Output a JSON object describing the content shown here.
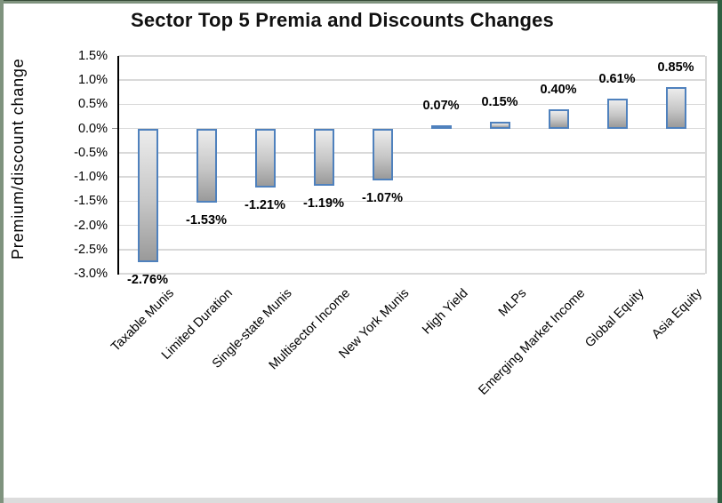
{
  "chart_data": {
    "type": "bar",
    "title": "Sector Top 5 Premia and Discounts Changes",
    "xlabel": "",
    "ylabel": "Premium/discount change",
    "categories": [
      "Taxable Munis",
      "Limited Duration",
      "Single-state Munis",
      "Multisector Income",
      "New York Munis",
      "High Yield",
      "MLPs",
      "Emerging Market Income",
      "Global Equity",
      "Asia Equity"
    ],
    "values": [
      -2.76,
      -1.53,
      -1.21,
      -1.19,
      -1.07,
      0.07,
      0.15,
      0.4,
      0.61,
      0.85
    ],
    "data_labels": [
      "-2.76%",
      "-1.53%",
      "-1.21%",
      "-1.19%",
      "-1.07%",
      "0.07%",
      "0.15%",
      "0.40%",
      "0.61%",
      "0.85%"
    ],
    "ytick_labels": [
      "1.5%",
      "1.0%",
      "0.5%",
      "0.0%",
      "-0.5%",
      "-1.0%",
      "-1.5%",
      "-2.0%",
      "-2.5%",
      "-3.0%"
    ],
    "ylim": [
      -3.0,
      1.5
    ],
    "ytick_step": 0.5,
    "grid": "horizontal",
    "legend": "none"
  },
  "colors": {
    "bar_border": "#4f81bd",
    "bar_fill_top": "#ececec",
    "bar_fill_mid": "#c6c6c6",
    "bar_fill_bottom": "#9a9a9a",
    "gridline": "#d9d9d9",
    "axis": "#000000",
    "zero_tick": "#8c8c8c",
    "frame_green": "#7f937e",
    "frame_green_dark": "#2f5f41",
    "frame_top_line": "#364b38",
    "frame_bottom_strip": "#dcdcdc",
    "background": "#ffffff"
  }
}
